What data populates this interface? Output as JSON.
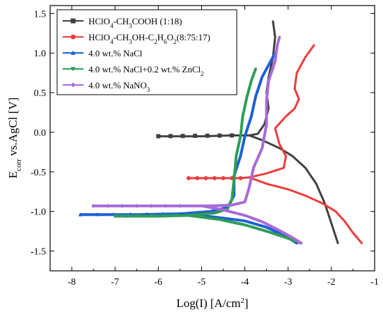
{
  "chart_data": {
    "type": "line",
    "title": "",
    "xlabel": "Log(I) [A/cm²]",
    "xlabel_parts": {
      "main": "Log(I) [A/cm",
      "sup": "2",
      "end": "]"
    },
    "ylabel": "Ecorr vs.AgCl [V]",
    "ylabel_parts": {
      "main": "E",
      "sub": "corr",
      "rest": " vs.AgCl [V]"
    },
    "xlim": [
      -8.5,
      -1
    ],
    "ylim": [
      -1.75,
      1.6
    ],
    "x_ticks": [
      -8,
      -7,
      -6,
      -5,
      -4,
      -3,
      -2,
      -1
    ],
    "y_ticks": [
      -1.5,
      -1.0,
      -0.5,
      0.0,
      0.5,
      1.0,
      1.5
    ],
    "x_tick_labels": [
      "-8",
      "-7",
      "-6",
      "-5",
      "-4",
      "-3",
      "-2",
      "-1"
    ],
    "y_tick_labels": [
      "-1.5",
      "-1.0",
      "-0.5",
      "0.0",
      "0.5",
      "1.0",
      "1.5"
    ],
    "grid": false,
    "legend_position": "top-left",
    "series": [
      {
        "name": "HClO4-CH3COOH (1:18)",
        "label_parts": [
          [
            "HClO",
            ""
          ],
          [
            "4",
            "sub"
          ],
          [
            "-CH",
            ""
          ],
          [
            "3",
            "sub"
          ],
          [
            "COOH (1:18)",
            ""
          ]
        ],
        "color": "#404040",
        "marker": "square",
        "points": [
          [
            -6.0,
            -0.05
          ],
          [
            -5.0,
            -0.05
          ],
          [
            -4.3,
            -0.04
          ],
          [
            -3.9,
            -0.04
          ],
          [
            -3.7,
            -0.02
          ],
          [
            -3.55,
            0.1
          ],
          [
            -3.45,
            0.3
          ],
          [
            -3.5,
            0.5
          ],
          [
            -3.45,
            0.7
          ],
          [
            -3.35,
            0.95
          ],
          [
            -3.3,
            1.2
          ],
          [
            -3.35,
            1.4
          ]
        ],
        "branch2": [
          [
            -3.9,
            -0.04
          ],
          [
            -3.6,
            -0.1
          ],
          [
            -3.2,
            -0.2
          ],
          [
            -2.9,
            -0.3
          ],
          [
            -2.6,
            -0.45
          ],
          [
            -2.35,
            -0.65
          ],
          [
            -2.15,
            -0.9
          ],
          [
            -2.0,
            -1.15
          ],
          [
            -1.85,
            -1.4
          ]
        ]
      },
      {
        "name": "HClO4-CH3OH-C2H6O2(8:75:17)",
        "label_parts": [
          [
            "HClO",
            ""
          ],
          [
            "4",
            "sub"
          ],
          [
            "-CH",
            ""
          ],
          [
            "3",
            "sub"
          ],
          [
            "OH-C",
            ""
          ],
          [
            "2",
            "sub"
          ],
          [
            "H",
            ""
          ],
          [
            "6",
            "sub"
          ],
          [
            "O",
            ""
          ],
          [
            "2",
            "sub"
          ],
          [
            "(8:75:17)",
            ""
          ]
        ],
        "color": "#ef3b3b",
        "marker": "circle",
        "points": [
          [
            -5.3,
            -0.58
          ],
          [
            -4.5,
            -0.58
          ],
          [
            -4.1,
            -0.58
          ],
          [
            -3.9,
            -0.57
          ],
          [
            -3.5,
            -0.52
          ],
          [
            -3.1,
            -0.45
          ],
          [
            -3.05,
            -0.3
          ],
          [
            -3.2,
            -0.15
          ],
          [
            -3.3,
            0.05
          ],
          [
            -3.05,
            0.2
          ],
          [
            -2.85,
            0.3
          ],
          [
            -2.75,
            0.42
          ],
          [
            -2.85,
            0.55
          ],
          [
            -2.8,
            0.75
          ],
          [
            -2.6,
            0.95
          ],
          [
            -2.4,
            1.1
          ]
        ],
        "branch2": [
          [
            -3.9,
            -0.57
          ],
          [
            -3.5,
            -0.65
          ],
          [
            -3.0,
            -0.72
          ],
          [
            -2.6,
            -0.8
          ],
          [
            -2.2,
            -0.9
          ],
          [
            -1.9,
            -1.0
          ],
          [
            -1.7,
            -1.12
          ],
          [
            -1.5,
            -1.27
          ],
          [
            -1.3,
            -1.4
          ]
        ]
      },
      {
        "name": "4.0 wt.% NaCl",
        "label_parts": [
          [
            "4.0 wt.%  NaCl",
            ""
          ]
        ],
        "color": "#1f5fd6",
        "marker": "triangle",
        "points": [
          [
            -7.8,
            -1.04
          ],
          [
            -6.5,
            -1.04
          ],
          [
            -5.5,
            -1.03
          ],
          [
            -4.8,
            -1.0
          ],
          [
            -4.4,
            -0.95
          ],
          [
            -4.25,
            -0.8
          ],
          [
            -4.25,
            -0.55
          ],
          [
            -4.1,
            -0.3
          ],
          [
            -4.0,
            -0.05
          ],
          [
            -3.85,
            0.2
          ],
          [
            -3.75,
            0.45
          ],
          [
            -3.6,
            0.7
          ],
          [
            -3.4,
            0.9
          ],
          [
            -3.3,
            1.0
          ]
        ],
        "branch2": [
          [
            -5.5,
            -1.03
          ],
          [
            -4.7,
            -1.07
          ],
          [
            -4.0,
            -1.12
          ],
          [
            -3.5,
            -1.2
          ],
          [
            -3.1,
            -1.3
          ],
          [
            -2.8,
            -1.4
          ]
        ]
      },
      {
        "name": "4.0 wt.% NaCl+0.2 wt.% ZnCl2",
        "label_parts": [
          [
            "4.0 wt.%  NaCl+0.2 wt.%  ZnCl",
            ""
          ],
          [
            "2",
            "sub"
          ]
        ],
        "color": "#2e9e56",
        "marker": "down-triangle",
        "points": [
          [
            -7.0,
            -1.06
          ],
          [
            -6.0,
            -1.06
          ],
          [
            -5.3,
            -1.05
          ],
          [
            -4.7,
            -1.02
          ],
          [
            -4.4,
            -0.97
          ],
          [
            -4.3,
            -0.85
          ],
          [
            -4.25,
            -0.6
          ],
          [
            -4.2,
            -0.3
          ],
          [
            -4.1,
            -0.05
          ],
          [
            -4.05,
            0.2
          ],
          [
            -3.95,
            0.45
          ],
          [
            -3.85,
            0.65
          ],
          [
            -3.75,
            0.8
          ]
        ],
        "branch2": [
          [
            -5.3,
            -1.05
          ],
          [
            -4.6,
            -1.1
          ],
          [
            -4.0,
            -1.17
          ],
          [
            -3.5,
            -1.25
          ],
          [
            -3.05,
            -1.33
          ],
          [
            -2.7,
            -1.4
          ]
        ]
      },
      {
        "name": "4.0 wt.% NaNO3",
        "label_parts": [
          [
            "4.0 wt.%  NaNO",
            ""
          ],
          [
            "3",
            "sub"
          ]
        ],
        "color": "#a86ad8",
        "marker": "diamond",
        "points": [
          [
            -7.5,
            -0.93
          ],
          [
            -6.5,
            -0.93
          ],
          [
            -5.5,
            -0.93
          ],
          [
            -4.8,
            -0.93
          ],
          [
            -4.3,
            -0.92
          ],
          [
            -4.0,
            -0.88
          ],
          [
            -3.9,
            -0.7
          ],
          [
            -3.8,
            -0.45
          ],
          [
            -3.6,
            -0.2
          ],
          [
            -3.5,
            0.1
          ],
          [
            -3.5,
            0.4
          ],
          [
            -3.45,
            0.65
          ],
          [
            -3.3,
            0.9
          ],
          [
            -3.25,
            1.1
          ],
          [
            -3.2,
            1.2
          ]
        ],
        "branch2": [
          [
            -5.0,
            -0.93
          ],
          [
            -4.5,
            -0.98
          ],
          [
            -4.0,
            -1.05
          ],
          [
            -3.6,
            -1.13
          ],
          [
            -3.2,
            -1.24
          ],
          [
            -2.9,
            -1.33
          ],
          [
            -2.7,
            -1.4
          ]
        ]
      }
    ]
  }
}
